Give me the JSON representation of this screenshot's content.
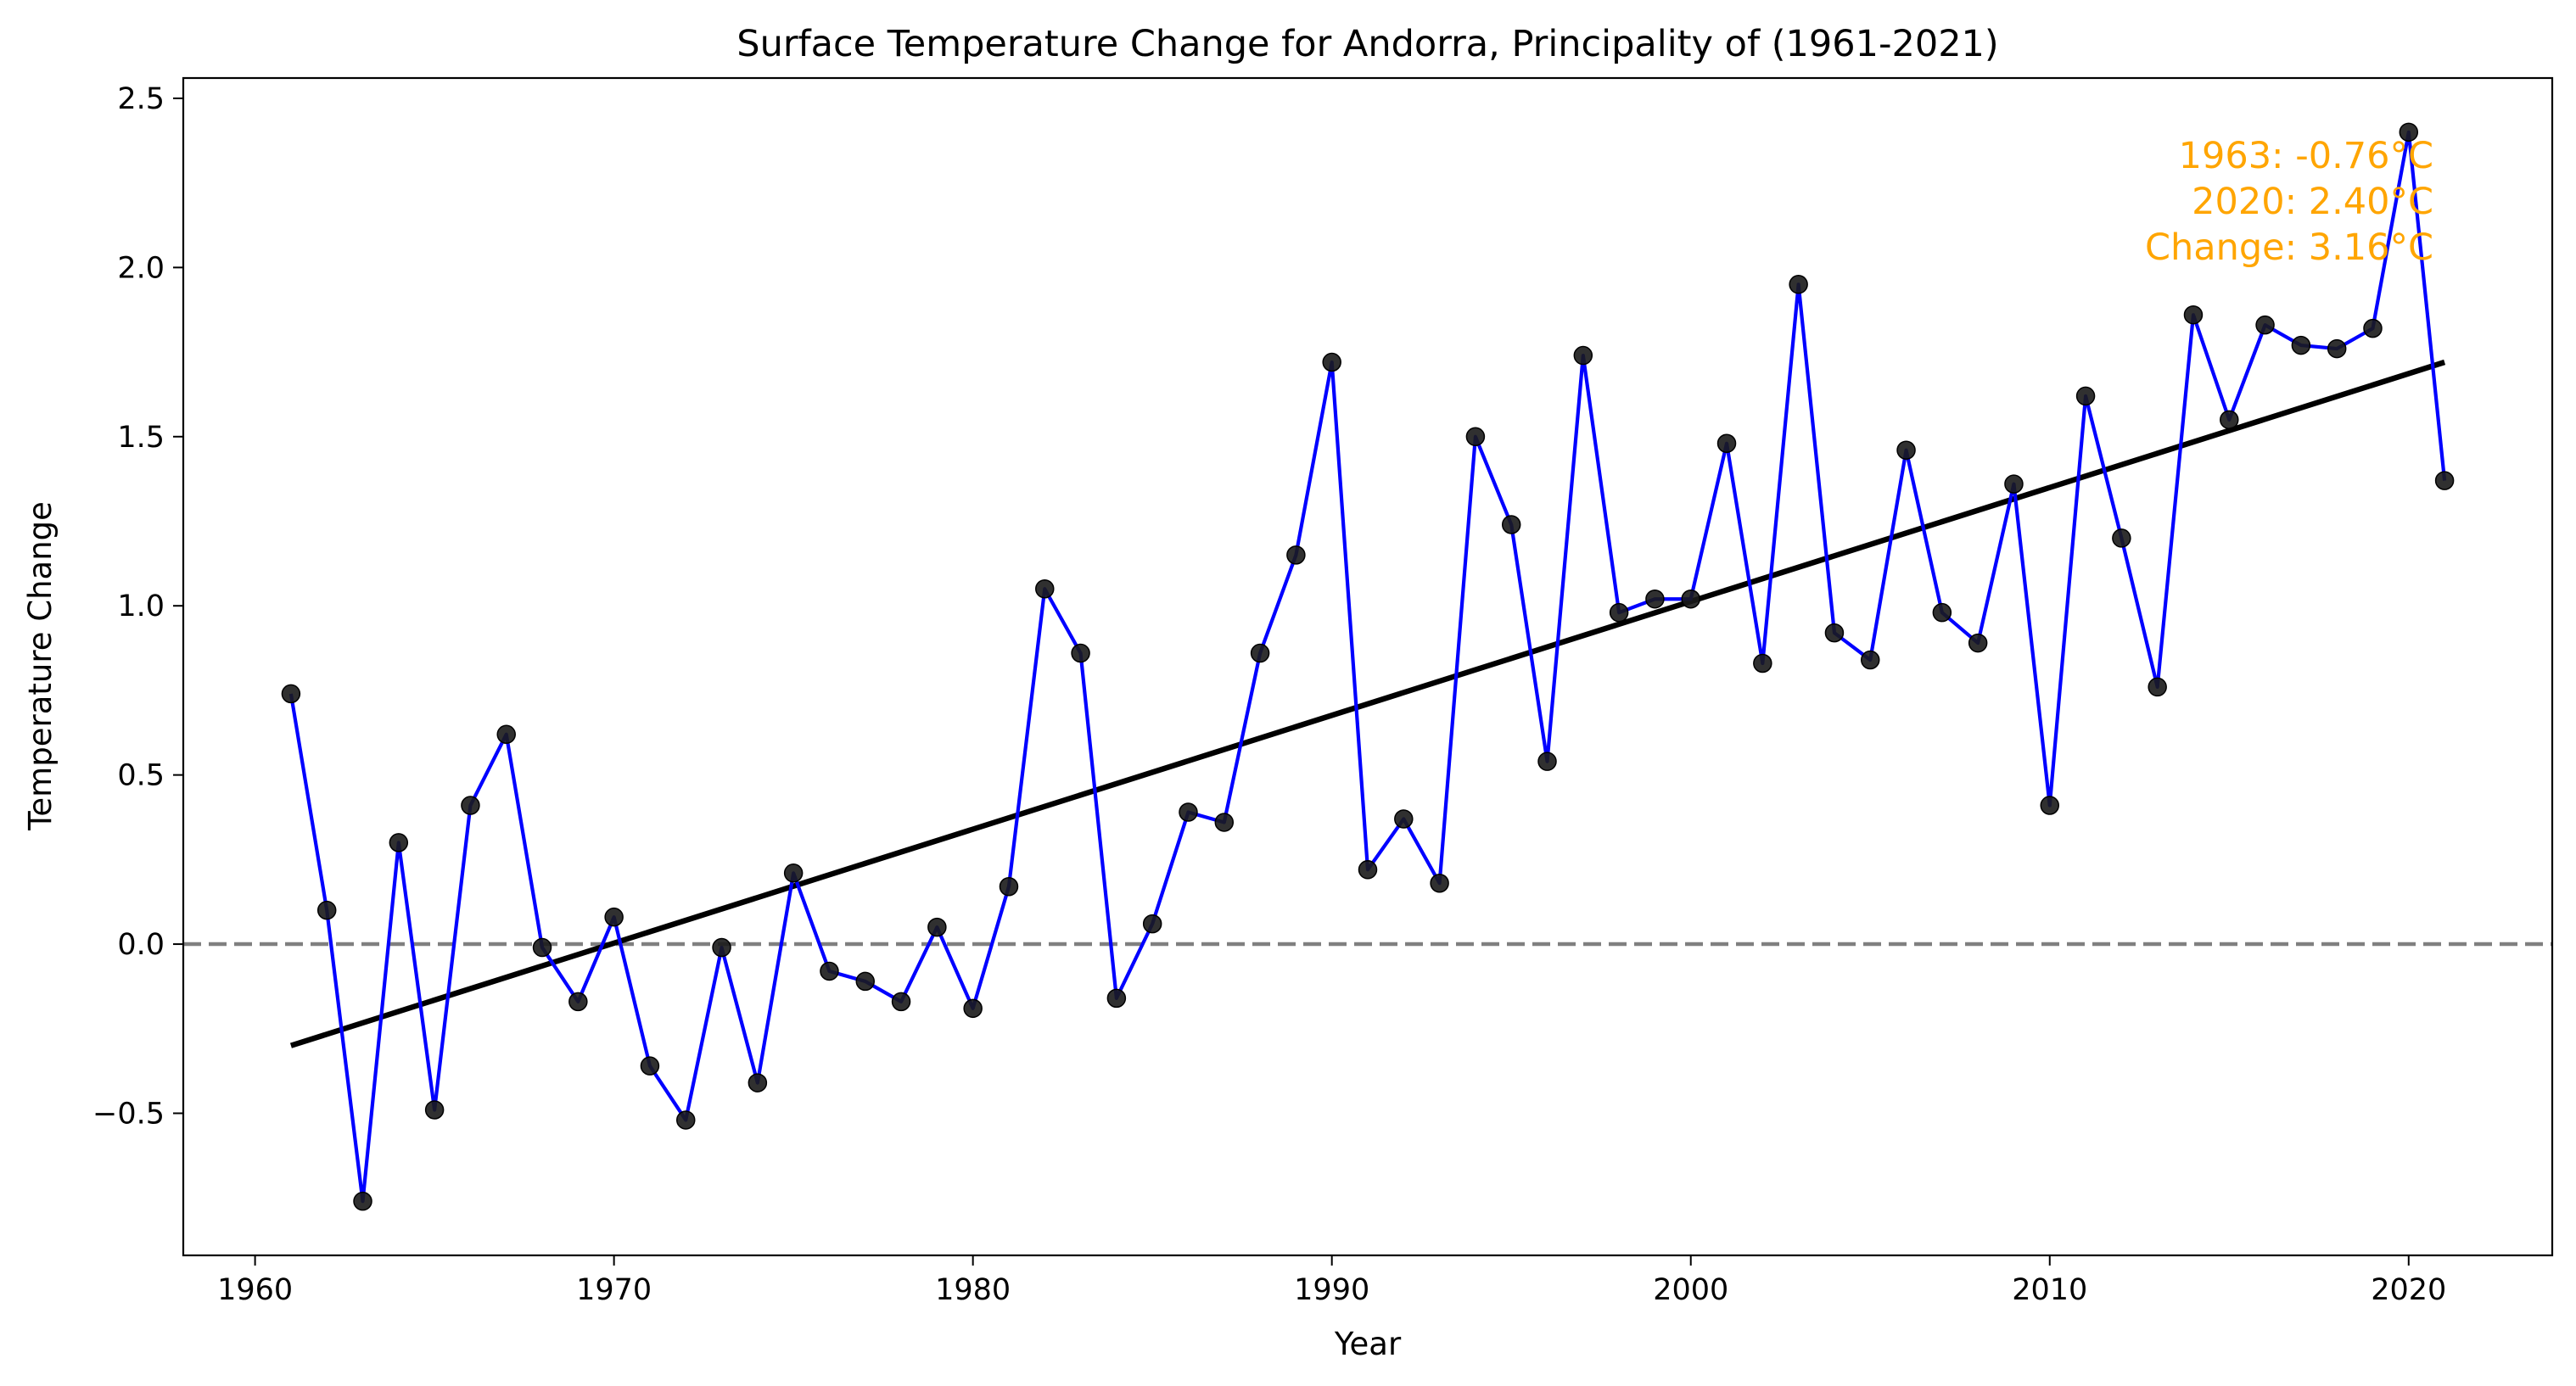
{
  "chart_data": {
    "type": "line",
    "title": "Surface Temperature Change for Andorra, Principality of (1961-2021)",
    "xlabel": "Year",
    "ylabel": "Temperature Change",
    "xlim": [
      1958.0,
      2024.0
    ],
    "ylim": [
      -0.92,
      2.56
    ],
    "xticks": [
      1960,
      1970,
      1980,
      1990,
      2000,
      2010,
      2020
    ],
    "yticks": [
      -0.5,
      0.0,
      0.5,
      1.0,
      1.5,
      2.0,
      2.5
    ],
    "ytick_labels": [
      "−0.5",
      "0.0",
      "0.5",
      "1.0",
      "1.5",
      "2.0",
      "2.5"
    ],
    "grid": false,
    "series": [
      {
        "x": [
          1961,
          1962,
          1963,
          1964,
          1965,
          1966,
          1967,
          1968,
          1969,
          1970,
          1971,
          1972,
          1973,
          1974,
          1975,
          1976,
          1977,
          1978,
          1979,
          1980,
          1981,
          1982,
          1983,
          1984,
          1985,
          1986,
          1987,
          1988,
          1989,
          1990,
          1991,
          1992,
          1993,
          1994,
          1995,
          1996,
          1997,
          1998,
          1999,
          2000,
          2001,
          2002,
          2003,
          2004,
          2005,
          2006,
          2007,
          2008,
          2009,
          2010,
          2011,
          2012,
          2013,
          2014,
          2015,
          2016,
          2017,
          2018,
          2019,
          2020,
          2021
        ],
        "values": [
          0.74,
          0.1,
          -0.76,
          0.3,
          -0.49,
          0.41,
          0.62,
          -0.01,
          -0.17,
          0.08,
          -0.36,
          -0.52,
          -0.01,
          -0.41,
          0.21,
          -0.08,
          -0.11,
          -0.17,
          0.05,
          -0.19,
          0.17,
          1.05,
          0.86,
          -0.16,
          0.06,
          0.39,
          0.36,
          0.86,
          1.15,
          1.72,
          0.22,
          0.37,
          0.18,
          1.5,
          1.24,
          0.54,
          1.74,
          0.98,
          1.02,
          1.02,
          1.48,
          0.83,
          1.95,
          0.92,
          0.84,
          1.46,
          0.98,
          0.89,
          1.36,
          0.41,
          1.62,
          1.2,
          0.76,
          1.86,
          1.55,
          1.83,
          1.77,
          1.76,
          1.82,
          2.4,
          1.37
        ],
        "color": "#0000ff",
        "marker_color": "#1a1a1a"
      }
    ],
    "trend_line": {
      "x": [
        1961,
        2021
      ],
      "y": [
        -0.3,
        1.72
      ],
      "color": "#000000"
    },
    "baseline": {
      "y": 0.0,
      "style": "dashed",
      "color": "#808080"
    },
    "annotations": {
      "color": "#ffa500",
      "lines": [
        "1963: -0.76°C",
        "2020: 2.40°C",
        "Change: 3.16°C"
      ]
    }
  }
}
